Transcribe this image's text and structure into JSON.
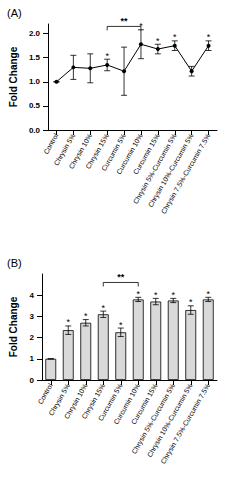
{
  "chart_data": [
    {
      "type": "line",
      "title": "(A)",
      "y_label": "Fold Change",
      "categories": [
        "Control",
        "Chrysin 5%",
        "Chrysin 10%",
        "Chrysin 15%",
        "Curcumin 5%",
        "Curcumin 10%",
        "Curcumin 15%",
        "Chrysin 5%-Curcumin 5%",
        "Chrysin 10%-Curcumin 5%",
        "Chrysin 7.5%-Curcumin 7.5%"
      ],
      "values": [
        1.0,
        1.3,
        1.28,
        1.35,
        1.22,
        1.78,
        1.68,
        1.75,
        1.22,
        1.75
      ],
      "errors": [
        0,
        0.25,
        0.3,
        0.12,
        0.5,
        0.3,
        0.1,
        0.1,
        0.1,
        0.1
      ],
      "significance": [
        null,
        null,
        null,
        "*",
        null,
        "*",
        "*",
        "*",
        null,
        "*"
      ],
      "color": "#000000",
      "marker": "circle",
      "ylim": [
        0,
        2.2
      ],
      "yticks": [
        {
          "value": 0,
          "label": "0.0"
        },
        {
          "value": 0.5,
          "label": "0.5"
        },
        {
          "value": 1,
          "label": "1.0"
        },
        {
          "value": 1.5,
          "label": "1.5"
        },
        {
          "value": 2,
          "label": "2.0"
        }
      ],
      "annotations": [
        {
          "text": "**",
          "from": "Chrysin 15%",
          "to": "Curcumin 10%",
          "y": 2.15
        }
      ]
    },
    {
      "type": "bar",
      "title": "(B)",
      "y_label": "Fold Change",
      "categories": [
        "Control",
        "Chrysin 5%",
        "Chrysin 10%",
        "Chrysin 15%",
        "Curcumin 5%",
        "Curcumin 10%",
        "Curcumin 15%",
        "Chrysin 5%-Curcumin 5%",
        "Chrysin 10%-Curcumin 5%",
        "Chrysin 7.5%-Curcumin 7.5%"
      ],
      "values": [
        1.0,
        2.35,
        2.7,
        3.1,
        2.25,
        3.8,
        3.7,
        3.75,
        3.3,
        3.8
      ],
      "errors": [
        0,
        0.2,
        0.15,
        0.15,
        0.2,
        0.1,
        0.15,
        0.1,
        0.2,
        0.1
      ],
      "significance": [
        null,
        "*",
        "*",
        "*",
        "*",
        "*",
        "*",
        "*",
        "*",
        "*"
      ],
      "color": "#d9d9d9",
      "ylim": [
        0,
        5
      ],
      "yticks": [
        0,
        1,
        2,
        3,
        4
      ],
      "annotations": [
        {
          "text": "**",
          "from": "Chrysin 15%",
          "to": "Curcumin 10%",
          "y": 4.6
        }
      ]
    }
  ]
}
